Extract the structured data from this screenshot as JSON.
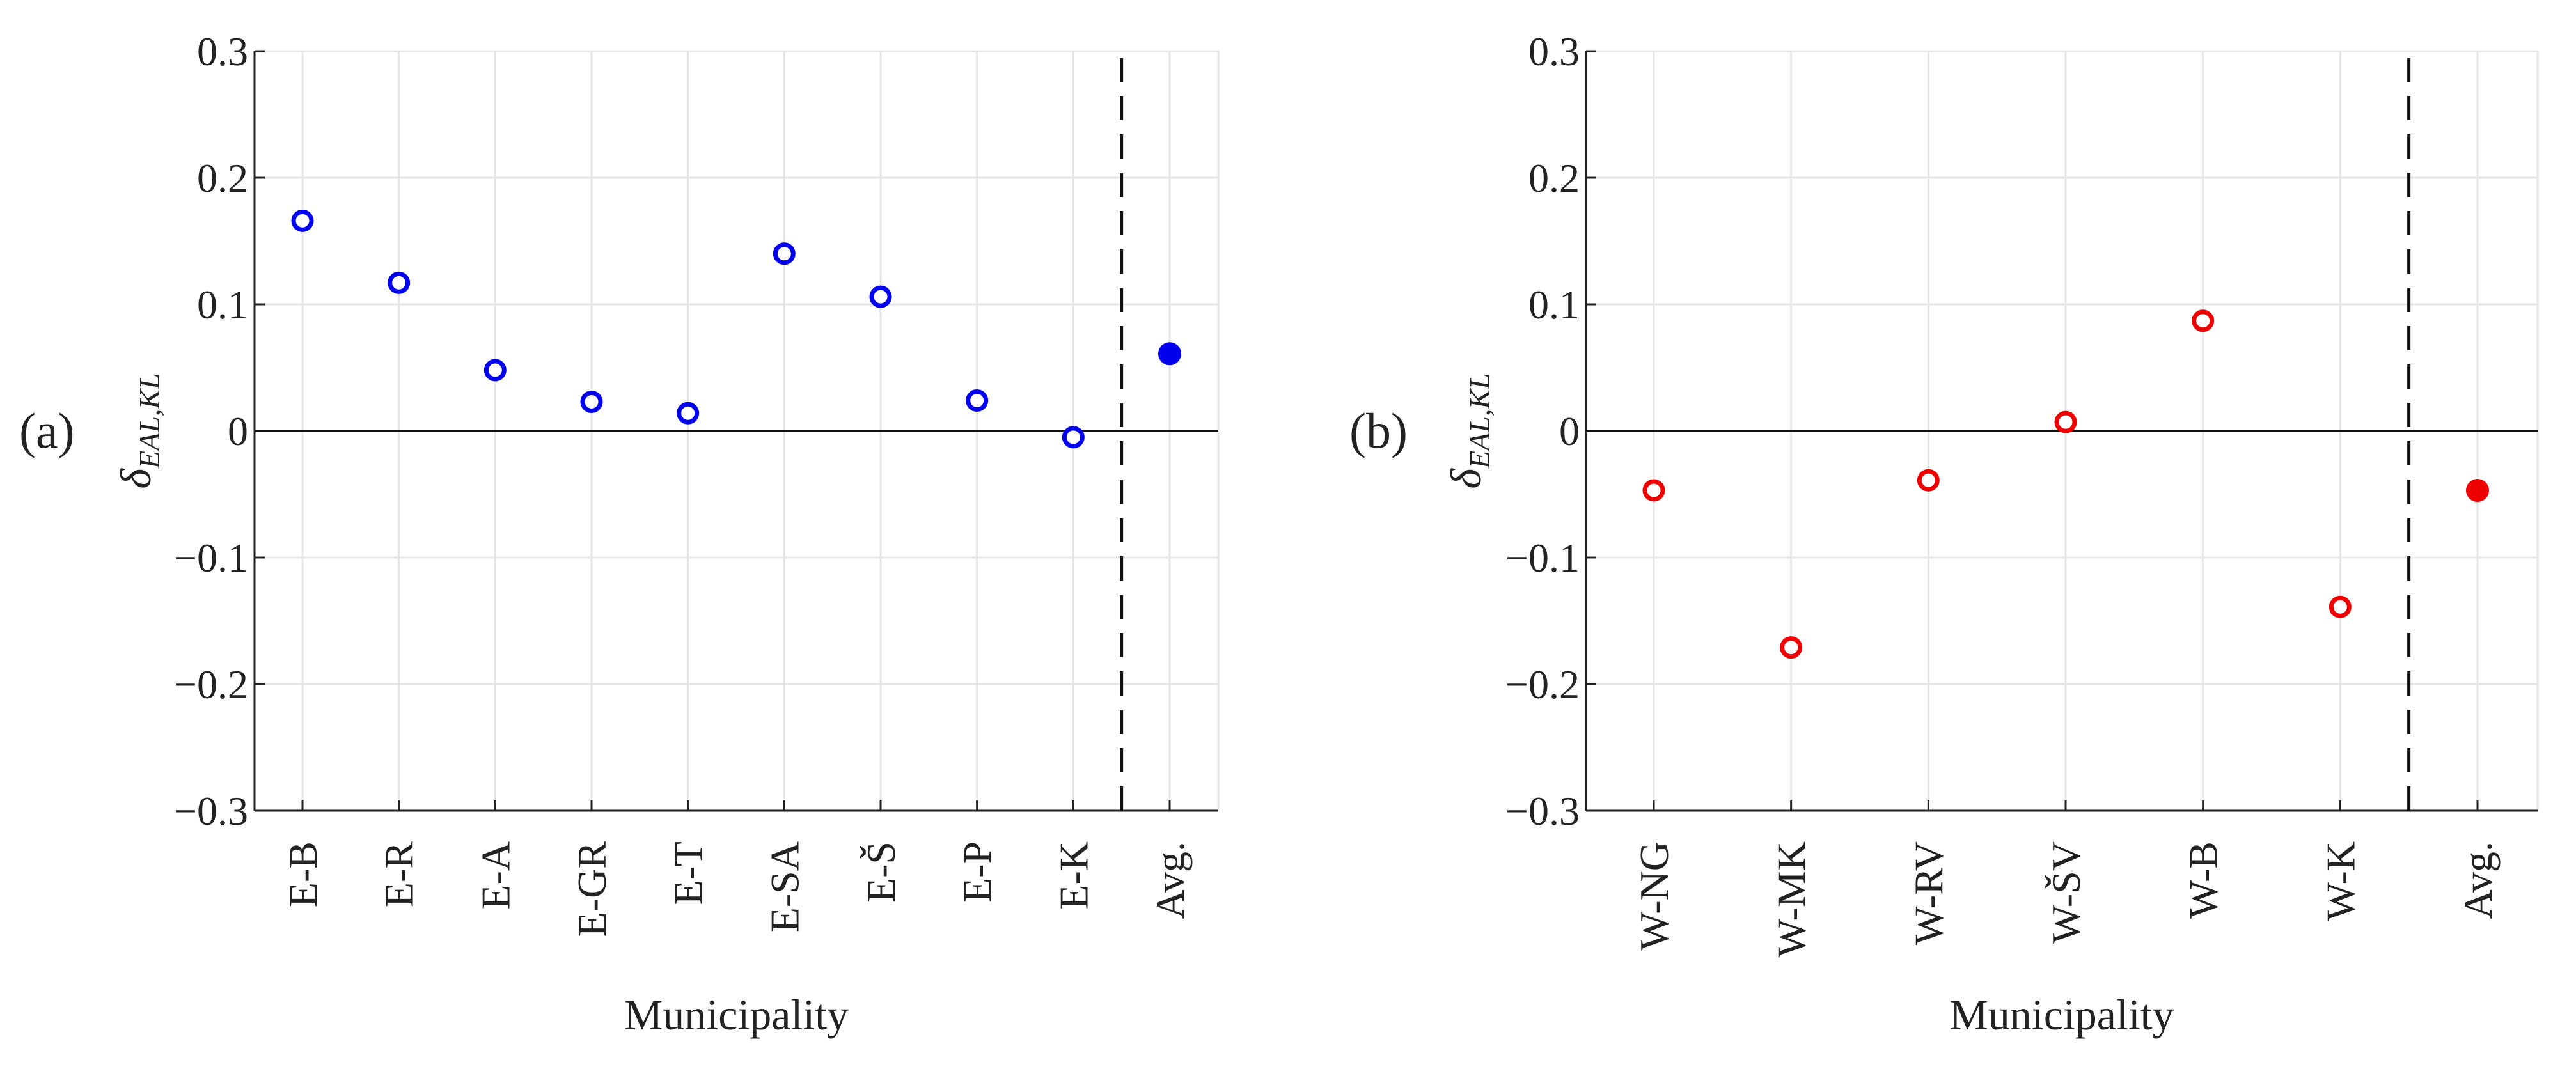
{
  "chart_data": [
    {
      "type": "scatter",
      "panel_label": "(a)",
      "ylabel_main": "δ",
      "ylabel_sub": "EAL,KL",
      "xlabel": "Municipality",
      "ylim": [
        -0.3,
        0.3
      ],
      "yticks": [
        0.3,
        0.2,
        0.1,
        0,
        -0.1,
        -0.2,
        -0.3
      ],
      "ytick_labels": [
        "0.3",
        "0.2",
        "0.1",
        "0",
        "−0.1",
        "−0.2",
        "−0.3"
      ],
      "categories": [
        "E-B",
        "E-R",
        "E-A",
        "E-GR",
        "E-T",
        "E-SA",
        "E-Š",
        "E-P",
        "E-K",
        "Avg."
      ],
      "values": [
        0.166,
        0.117,
        0.048,
        0.023,
        0.014,
        0.14,
        0.106,
        0.024,
        -0.005,
        0.061
      ],
      "marker_filled": [
        false,
        false,
        false,
        false,
        false,
        false,
        false,
        false,
        false,
        true
      ],
      "color": "#0000ee",
      "grid": true,
      "zero_line": true,
      "separator_after_index": 8
    },
    {
      "type": "scatter",
      "panel_label": "(b)",
      "ylabel_main": "δ",
      "ylabel_sub": "EAL,KL",
      "xlabel": "Municipality",
      "ylim": [
        -0.3,
        0.3
      ],
      "yticks": [
        0.3,
        0.2,
        0.1,
        0,
        -0.1,
        -0.2,
        -0.3
      ],
      "ytick_labels": [
        "0.3",
        "0.2",
        "0.1",
        "0",
        "−0.1",
        "−0.2",
        "−0.3"
      ],
      "categories": [
        "W-NG",
        "W-MK",
        "W-RV",
        "W-ŠV",
        "W-B",
        "W-K",
        "Avg."
      ],
      "values": [
        -0.047,
        -0.171,
        -0.039,
        0.007,
        0.087,
        -0.139,
        -0.047
      ],
      "marker_filled": [
        false,
        false,
        false,
        false,
        false,
        false,
        true
      ],
      "color": "#ee0000",
      "grid": true,
      "zero_line": true,
      "separator_after_index": 5
    }
  ]
}
